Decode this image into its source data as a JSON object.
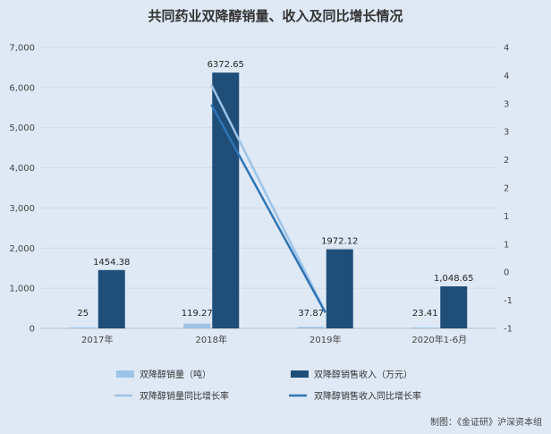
{
  "chart_data": {
    "type": "bar",
    "title": "共同药业双降醇销量、收入及同比增长情况",
    "categories": [
      "2017年",
      "2018年",
      "2019年",
      "2020年1-6月"
    ],
    "series": [
      {
        "name": "双降醇销量（吨）",
        "type": "bar",
        "axis": "left",
        "color": "#9dc3e6",
        "values": [
          25,
          119.27,
          37.87,
          23.41
        ],
        "labels": [
          "25",
          "119.27",
          "37.87",
          "23.41"
        ]
      },
      {
        "name": "双降醇销售收入（万元）",
        "type": "bar",
        "axis": "left",
        "color": "#1f4e79",
        "values": [
          1454.38,
          6372.65,
          1972.12,
          1048.65
        ],
        "labels": [
          "1454.38",
          "6372.65",
          "1972.12",
          "1,048.65"
        ]
      },
      {
        "name": "双降醇销量同比增长率",
        "type": "line",
        "axis": "right",
        "color": "#9dc3e6",
        "values": [
          null,
          3.77,
          -0.68,
          null
        ]
      },
      {
        "name": "双降醇销售收入同比增长率",
        "type": "line",
        "axis": "right",
        "color": "#2e75b6",
        "values": [
          null,
          3.38,
          -0.69,
          null
        ]
      }
    ],
    "y_left": {
      "min": 0,
      "max": 7000,
      "ticks": [
        "0",
        "1,000",
        "2,000",
        "3,000",
        "4,000",
        "5,000",
        "6,000",
        "7,000"
      ]
    },
    "y_right": {
      "min": -1,
      "max": 4.5,
      "ticks": [
        "-1",
        "-1",
        "0",
        "1",
        "1",
        "2",
        "2",
        "3",
        "3",
        "4",
        "4"
      ]
    },
    "grid": true,
    "legend_position": "bottom"
  },
  "source": "制图：《金证研》沪深资本组"
}
